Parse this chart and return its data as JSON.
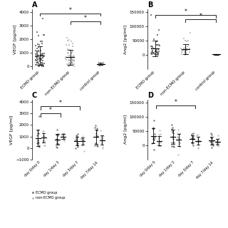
{
  "panel_A": {
    "title": "A",
    "ylabel": "VEGF [pg/ml]",
    "ylim": [
      -200,
      4200
    ],
    "yticks": [
      0,
      1000,
      2000,
      3000,
      4000
    ],
    "groups": [
      "ECMO group",
      "non-ECMO group",
      "control group"
    ],
    "ecmo_n": 75,
    "ecmo_mean": 700,
    "ecmo_sd": 550,
    "nonecmo_n": 55,
    "nonecmo_mean": 650,
    "nonecmo_sd": 600,
    "control_n": 28,
    "control_mean": 220,
    "control_sd": 90,
    "bracket1": [
      0,
      2,
      3700,
      3900,
      "*"
    ],
    "bracket2": [
      1,
      2,
      3100,
      3300,
      "*"
    ]
  },
  "panel_B": {
    "title": "B",
    "ylabel": "Ang2 [pg/ml]",
    "ylim": [
      -50000,
      160000
    ],
    "yticks": [
      0,
      50000,
      100000,
      150000
    ],
    "groups": [
      "ECMO group",
      "non-ECMO group",
      "control group"
    ],
    "ecmo_n": 40,
    "ecmo_mean": 30000,
    "ecmo_sd": 25000,
    "nonecmo_n": 35,
    "nonecmo_mean": 18000,
    "nonecmo_sd": 22000,
    "control_n": 10,
    "control_mean": 2000,
    "control_sd": 1200,
    "bracket1": [
      0,
      2,
      130000,
      140000,
      "*"
    ],
    "bracket2": [
      1,
      2,
      115000,
      125000,
      "*"
    ]
  },
  "panel_C": {
    "title": "C",
    "ylabel": "VEGF [pg/ml]",
    "ylim": [
      -1000,
      4200
    ],
    "yticks": [
      -1000,
      0,
      1000,
      2000,
      3000,
      4000
    ],
    "xlabels": [
      "day 0/day 0",
      "day 1/day 3",
      "day 3/day 7",
      "day 7/day 14"
    ],
    "ecmo_means": [
      1000,
      900,
      600,
      700
    ],
    "ecmo_sds": [
      550,
      500,
      350,
      550
    ],
    "nonecmo_means": [
      900,
      1000,
      650,
      700
    ],
    "nonecmo_sds": [
      450,
      500,
      300,
      500
    ],
    "n_per_group": 13,
    "bracket1": [
      0,
      2,
      3300,
      3600,
      "*"
    ],
    "bracket2": [
      0,
      1,
      2700,
      3000,
      "*"
    ]
  },
  "panel_D": {
    "title": "D",
    "ylabel": "Ang2 [pg/ml]",
    "ylim": [
      -50000,
      160000
    ],
    "yticks": [
      0,
      50000,
      100000,
      150000
    ],
    "xlabels": [
      "day 0/day 0",
      "day 1/day 3",
      "day 3/day 7",
      "day 7/day 14"
    ],
    "ecmo_means": [
      35000,
      30000,
      22000,
      18000
    ],
    "ecmo_sds": [
      28000,
      22000,
      18000,
      15000
    ],
    "nonecmo_means": [
      20000,
      18000,
      15000,
      12000
    ],
    "nonecmo_sds": [
      22000,
      18000,
      15000,
      12000
    ],
    "n_per_group": 13,
    "bracket1": [
      0,
      2,
      130000,
      140000,
      "*"
    ]
  },
  "colors": {
    "ecmo": "#666666",
    "nonecmo": "#bbbbbb"
  },
  "legend_labels": [
    "ECMO group",
    "non-ECMO group"
  ]
}
